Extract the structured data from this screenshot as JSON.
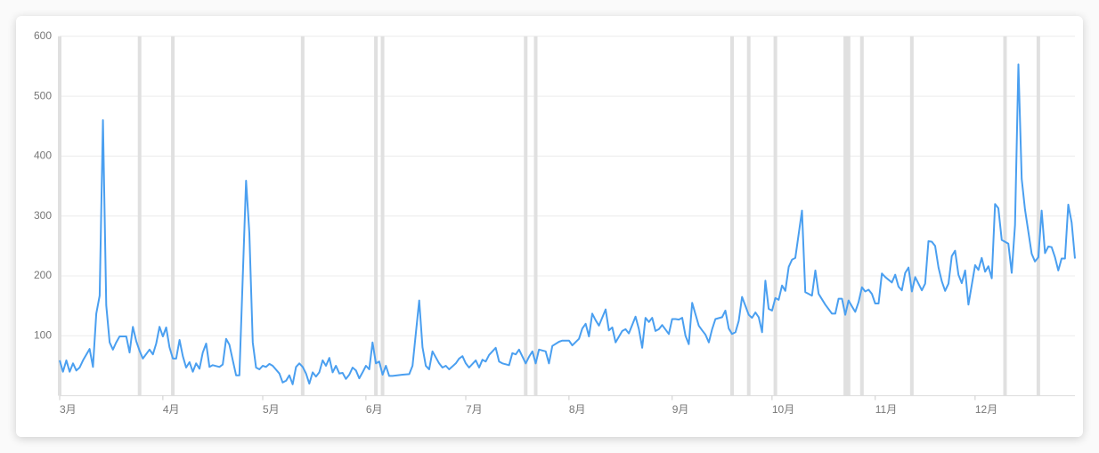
{
  "chart_data": {
    "type": "line",
    "x": [
      0,
      1,
      2,
      3,
      4,
      5,
      6,
      7,
      9,
      10,
      11,
      12,
      13,
      14,
      15,
      16,
      17,
      18,
      20,
      21,
      22,
      23,
      24,
      25,
      27,
      28,
      29,
      30,
      31,
      32,
      33,
      34,
      35,
      36,
      37,
      38,
      39,
      40,
      41,
      42,
      43,
      44,
      45,
      46,
      48,
      49,
      50,
      51,
      52,
      53,
      54,
      56,
      57,
      58,
      59,
      60,
      61,
      62,
      63,
      64,
      66,
      67,
      68,
      69,
      70,
      71,
      72,
      73,
      74,
      75,
      76,
      77,
      78,
      79,
      80,
      81,
      82,
      83,
      84,
      85,
      86,
      87,
      88,
      89,
      90,
      91,
      92,
      93,
      94,
      95,
      96,
      97,
      98,
      99,
      100,
      103,
      105,
      106,
      108,
      109,
      110,
      111,
      112,
      114,
      115,
      116,
      117,
      119,
      120,
      121,
      122,
      123,
      125,
      126,
      127,
      128,
      129,
      131,
      132,
      133,
      135,
      136,
      137,
      138,
      140,
      141,
      142,
      143,
      144,
      146,
      147,
      148,
      150,
      151,
      152,
      153,
      154,
      156,
      157,
      158,
      159,
      160,
      161,
      162,
      164,
      165,
      166,
      167,
      169,
      170,
      171,
      173,
      174,
      175,
      176,
      177,
      178,
      179,
      180,
      181,
      183,
      184,
      185,
      186,
      187,
      188,
      189,
      190,
      192,
      193,
      194,
      195,
      196,
      197,
      199,
      200,
      201,
      202,
      203,
      204,
      205,
      207,
      208,
      209,
      210,
      211,
      212,
      213,
      214,
      215,
      216,
      217,
      218,
      219,
      220,
      221,
      223,
      224,
      225,
      226,
      227,
      228,
      229,
      230,
      232,
      233,
      234,
      235,
      236,
      237,
      238,
      239,
      240,
      241,
      242,
      243,
      244,
      245,
      246,
      247,
      248,
      250,
      251,
      252,
      253,
      254,
      255,
      256,
      257,
      258,
      259,
      260,
      261,
      262,
      263,
      264,
      265,
      266,
      267,
      268,
      269,
      270,
      271,
      272,
      273,
      275,
      276,
      277,
      278,
      279,
      280,
      281,
      282,
      283,
      285,
      286,
      287,
      288,
      289,
      290,
      292,
      293,
      294,
      295,
      296,
      297,
      298,
      299,
      300,
      301,
      302,
      303,
      304,
      305
    ],
    "series": [
      {
        "color": "#4a9ff0",
        "values": [
          59,
          40,
          59,
          40,
          54,
          42,
          47,
          59,
          78,
          48,
          137,
          167,
          460,
          151,
          89,
          77,
          89,
          99,
          99,
          72,
          115,
          91,
          75,
          62,
          77,
          69,
          87,
          115,
          99,
          114,
          81,
          62,
          62,
          93,
          66,
          47,
          56,
          40,
          54,
          45,
          72,
          87,
          48,
          51,
          48,
          52,
          95,
          85,
          59,
          34,
          34,
          359,
          271,
          89,
          47,
          44,
          50,
          48,
          53,
          50,
          37,
          22,
          25,
          34,
          19,
          48,
          54,
          48,
          37,
          20,
          39,
          32,
          39,
          59,
          50,
          63,
          39,
          50,
          37,
          38,
          28,
          35,
          47,
          42,
          29,
          39,
          50,
          44,
          89,
          54,
          57,
          35,
          50,
          33,
          33,
          35,
          36,
          50,
          159,
          81,
          50,
          44,
          74,
          54,
          47,
          50,
          44,
          54,
          62,
          66,
          54,
          47,
          59,
          47,
          60,
          57,
          68,
          80,
          57,
          54,
          51,
          71,
          69,
          77,
          54,
          65,
          74,
          54,
          77,
          74,
          54,
          83,
          90,
          92,
          92,
          92,
          84,
          95,
          112,
          120,
          99,
          137,
          126,
          117,
          144,
          109,
          114,
          89,
          108,
          111,
          104,
          132,
          111,
          80,
          130,
          123,
          130,
          108,
          111,
          118,
          103,
          128,
          128,
          127,
          130,
          100,
          86,
          155,
          117,
          109,
          102,
          89,
          111,
          128,
          131,
          142,
          112,
          103,
          106,
          125,
          165,
          135,
          130,
          139,
          131,
          106,
          192,
          145,
          142,
          163,
          160,
          184,
          175,
          215,
          227,
          230,
          309,
          173,
          170,
          167,
          209,
          170,
          161,
          152,
          137,
          137,
          162,
          162,
          135,
          159,
          149,
          140,
          156,
          181,
          174,
          177,
          170,
          154,
          154,
          204,
          198,
          189,
          202,
          182,
          176,
          205,
          214,
          174,
          198,
          187,
          176,
          187,
          258,
          257,
          250,
          214,
          191,
          175,
          187,
          233,
          242,
          202,
          188,
          209,
          152,
          218,
          210,
          230,
          207,
          216,
          196,
          320,
          313,
          260,
          254,
          205,
          285,
          553,
          362,
          311,
          237,
          224,
          231,
          309,
          238,
          249,
          248,
          231,
          209,
          229,
          229,
          319,
          289,
          229
        ]
      }
    ],
    "xlim": [
      0,
      305
    ],
    "xticks": [
      {
        "value": 0,
        "label": "3月"
      },
      {
        "value": 31,
        "label": "4月"
      },
      {
        "value": 61,
        "label": "5月"
      },
      {
        "value": 92,
        "label": "6月"
      },
      {
        "value": 122,
        "label": "7月"
      },
      {
        "value": 153,
        "label": "8月"
      },
      {
        "value": 184,
        "label": "9月"
      },
      {
        "value": 214,
        "label": "10月"
      },
      {
        "value": 245,
        "label": "11月"
      },
      {
        "value": 275,
        "label": "12月"
      }
    ],
    "ylim": [
      0,
      600
    ],
    "yticks": [
      100,
      200,
      300,
      400,
      500,
      600
    ],
    "grid": true,
    "markers": [
      0,
      24,
      34,
      73,
      95,
      97,
      140,
      143,
      202,
      207,
      215,
      236,
      237,
      241,
      256,
      284,
      294
    ],
    "marker_color": "#e0e0e0"
  }
}
